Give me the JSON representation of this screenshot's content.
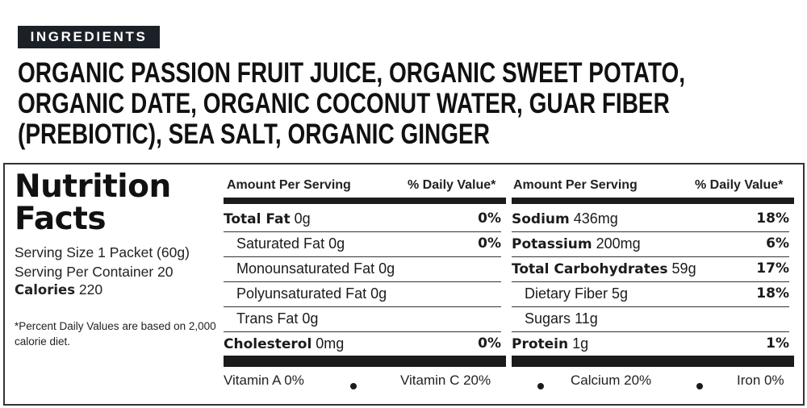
{
  "ingredients": {
    "label": "INGREDIENTS",
    "lines": [
      "ORGANIC PASSION FRUIT JUICE, ORGANIC SWEET POTATO,",
      "ORGANIC DATE, ORGANIC COCONUT WATER, GUAR FIBER",
      "(PREBIOTIC), SEA SALT, ORGANIC GINGER"
    ]
  },
  "nutrition": {
    "title_line1": "Nutrition",
    "title_line2": "Facts",
    "serving_size": "Serving Size 1 Packet (60g)",
    "servings_per_container": "Serving Per Container 20",
    "calories_label": "Calories",
    "calories_value": "220",
    "footnote": "*Percent Daily Values are based on 2,000 calorie diet.",
    "header_amount": "Amount Per Serving",
    "header_dv": "% Daily Value*",
    "left_rows": [
      {
        "name": "Total Fat",
        "amount": "0g",
        "pct": "0%",
        "bold": true
      },
      {
        "name": "Saturated Fat",
        "amount": "0g",
        "pct": "0%",
        "bold": false
      },
      {
        "name": "Monounsaturated Fat",
        "amount": "0g",
        "pct": "",
        "bold": false
      },
      {
        "name": "Polyunsaturated Fat",
        "amount": "0g",
        "pct": "",
        "bold": false
      },
      {
        "name": "Trans Fat",
        "amount": "0g",
        "pct": "",
        "bold": false
      },
      {
        "name": "Cholesterol",
        "amount": "0mg",
        "pct": "0%",
        "bold": true
      }
    ],
    "right_rows": [
      {
        "name": "Sodium",
        "amount": "436mg",
        "pct": "18%",
        "bold": true
      },
      {
        "name": "Potassium",
        "amount": "200mg",
        "pct": "6%",
        "bold": true
      },
      {
        "name": "Total Carbohydrates",
        "amount": "59g",
        "pct": "17%",
        "bold": true
      },
      {
        "name": "Dietary Fiber",
        "amount": "5g",
        "pct": "18%",
        "bold": false
      },
      {
        "name": "Sugars",
        "amount": "11g",
        "pct": "",
        "bold": false
      },
      {
        "name": "Protein",
        "amount": "1g",
        "pct": "1%",
        "bold": true
      }
    ],
    "vitamins": [
      "Vitamin A 0%",
      "Vitamin C 20%",
      "Calcium 20%",
      "Iron 0%"
    ]
  }
}
